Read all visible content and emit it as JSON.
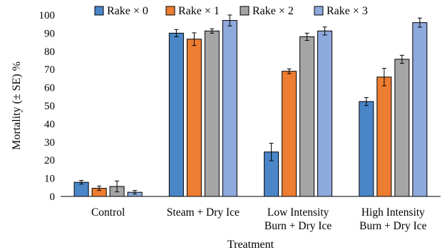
{
  "chart_data": {
    "type": "bar",
    "title": "",
    "xlabel": "Treatment",
    "ylabel": "Mortality (± SE) %",
    "ylim": [
      0,
      100
    ],
    "ytick_step": 10,
    "yticks": [
      "0",
      "10",
      "20",
      "30",
      "40",
      "50",
      "60",
      "70",
      "80",
      "90",
      "100"
    ],
    "grid": false,
    "legend_position": "top",
    "categories": [
      [
        "Control"
      ],
      [
        "Steam + Dry Ice"
      ],
      [
        "Low Intensity",
        "Burn + Dry Ice"
      ],
      [
        "High Intensity",
        "Burn + Dry Ice"
      ]
    ],
    "series": [
      {
        "name": "Rake × 0",
        "color": "#4A86C8",
        "values": [
          7.8,
          90.0,
          24.5,
          52.3
        ],
        "errors": [
          1.0,
          2.0,
          4.8,
          2.2
        ]
      },
      {
        "name": "Rake × 1",
        "color": "#ED7D31",
        "values": [
          4.5,
          86.7,
          69.0,
          65.8
        ],
        "errors": [
          1.2,
          3.5,
          1.3,
          4.8
        ]
      },
      {
        "name": "Rake × 2",
        "color": "#A5A5A5",
        "values": [
          5.5,
          91.2,
          88.0,
          75.6
        ],
        "errors": [
          3.0,
          1.2,
          2.0,
          2.2
        ]
      },
      {
        "name": "Rake × 3",
        "color": "#8EA9DB",
        "values": [
          2.3,
          97.0,
          91.2,
          95.8
        ],
        "errors": [
          1.0,
          3.0,
          2.2,
          2.5
        ]
      }
    ]
  }
}
